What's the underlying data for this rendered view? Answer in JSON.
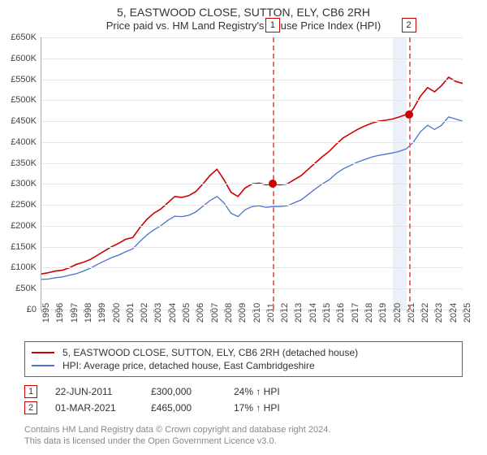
{
  "title_line1": "5, EASTWOOD CLOSE, SUTTON, ELY, CB6 2RH",
  "title_line2": "Price paid vs. HM Land Registry's House Price Index (HPI)",
  "title_fontsize_1": 14,
  "title_fontsize_2": 13,
  "chart": {
    "type": "line",
    "background_color": "#ffffff",
    "grid_color": "#e6e6e6",
    "axis_color": "#aaaaaa",
    "tick_label_fontsize": 11,
    "y": {
      "min": 0,
      "max": 650000,
      "tick_step": 50000,
      "labels": [
        "£0",
        "£50K",
        "£100K",
        "£150K",
        "£200K",
        "£250K",
        "£300K",
        "£350K",
        "£400K",
        "£450K",
        "£500K",
        "£550K",
        "£600K",
        "£650K"
      ]
    },
    "x": {
      "min": 1995,
      "max": 2025,
      "tick_step": 1,
      "labels": [
        "1995",
        "1996",
        "1997",
        "1998",
        "1999",
        "2000",
        "2001",
        "2002",
        "2003",
        "2004",
        "2005",
        "2006",
        "2007",
        "2008",
        "2009",
        "2010",
        "2011",
        "2012",
        "2013",
        "2014",
        "2015",
        "2016",
        "2017",
        "2018",
        "2019",
        "2020",
        "2021",
        "2022",
        "2023",
        "2024",
        "2025"
      ]
    },
    "vband": {
      "start_year": 2020,
      "end_year": 2021,
      "color": "#d8e2f3",
      "opacity": 0.5
    },
    "vlines": [
      {
        "id": 1,
        "year": 2011.47,
        "color": "#e07070",
        "dash": true,
        "box_label": "1"
      },
      {
        "id": 2,
        "year": 2021.16,
        "color": "#e07070",
        "dash": true,
        "box_label": "2"
      }
    ],
    "markers": [
      {
        "year": 2011.47,
        "value": 300000,
        "color": "#cc0000",
        "radius": 5
      },
      {
        "year": 2021.16,
        "value": 465000,
        "color": "#cc0000",
        "radius": 5
      }
    ],
    "series": [
      {
        "name": "property",
        "label": "5, EASTWOOD CLOSE, SUTTON, ELY, CB6 2RH (detached house)",
        "color": "#cc0000",
        "line_width": 1.6,
        "data": [
          [
            1995,
            85000
          ],
          [
            1995.5,
            88000
          ],
          [
            1996,
            92000
          ],
          [
            1996.5,
            94000
          ],
          [
            1997,
            100000
          ],
          [
            1997.5,
            108000
          ],
          [
            1998,
            113000
          ],
          [
            1998.5,
            120000
          ],
          [
            1999,
            130000
          ],
          [
            1999.5,
            140000
          ],
          [
            2000,
            150000
          ],
          [
            2000.5,
            158000
          ],
          [
            2001,
            168000
          ],
          [
            2001.5,
            172000
          ],
          [
            2002,
            195000
          ],
          [
            2002.5,
            215000
          ],
          [
            2003,
            230000
          ],
          [
            2003.5,
            240000
          ],
          [
            2004,
            255000
          ],
          [
            2004.5,
            270000
          ],
          [
            2005,
            268000
          ],
          [
            2005.5,
            272000
          ],
          [
            2006,
            282000
          ],
          [
            2006.5,
            300000
          ],
          [
            2007,
            320000
          ],
          [
            2007.5,
            335000
          ],
          [
            2008,
            310000
          ],
          [
            2008.5,
            280000
          ],
          [
            2009,
            270000
          ],
          [
            2009.5,
            290000
          ],
          [
            2010,
            300000
          ],
          [
            2010.5,
            302000
          ],
          [
            2011,
            298000
          ],
          [
            2011.47,
            300000
          ],
          [
            2012,
            298000
          ],
          [
            2012.5,
            300000
          ],
          [
            2013,
            310000
          ],
          [
            2013.5,
            320000
          ],
          [
            2014,
            335000
          ],
          [
            2014.5,
            350000
          ],
          [
            2015,
            365000
          ],
          [
            2015.5,
            378000
          ],
          [
            2016,
            395000
          ],
          [
            2016.5,
            410000
          ],
          [
            2017,
            420000
          ],
          [
            2017.5,
            430000
          ],
          [
            2018,
            438000
          ],
          [
            2018.5,
            445000
          ],
          [
            2019,
            450000
          ],
          [
            2019.5,
            452000
          ],
          [
            2020,
            455000
          ],
          [
            2020.5,
            460000
          ],
          [
            2021,
            466000
          ],
          [
            2021.16,
            465000
          ],
          [
            2021.5,
            480000
          ],
          [
            2022,
            510000
          ],
          [
            2022.5,
            530000
          ],
          [
            2023,
            520000
          ],
          [
            2023.5,
            535000
          ],
          [
            2024,
            555000
          ],
          [
            2024.5,
            545000
          ],
          [
            2025,
            540000
          ]
        ]
      },
      {
        "name": "hpi",
        "label": "HPI: Average price, detached house, East Cambridgeshire",
        "color": "#4a74c9",
        "line_width": 1.3,
        "data": [
          [
            1995,
            72000
          ],
          [
            1995.5,
            73000
          ],
          [
            1996,
            76000
          ],
          [
            1996.5,
            78000
          ],
          [
            1997,
            82000
          ],
          [
            1997.5,
            86000
          ],
          [
            1998,
            92000
          ],
          [
            1998.5,
            99000
          ],
          [
            1999,
            108000
          ],
          [
            1999.5,
            116000
          ],
          [
            2000,
            124000
          ],
          [
            2000.5,
            130000
          ],
          [
            2001,
            138000
          ],
          [
            2001.5,
            145000
          ],
          [
            2002,
            162000
          ],
          [
            2002.5,
            178000
          ],
          [
            2003,
            190000
          ],
          [
            2003.5,
            200000
          ],
          [
            2004,
            213000
          ],
          [
            2004.5,
            223000
          ],
          [
            2005,
            222000
          ],
          [
            2005.5,
            225000
          ],
          [
            2006,
            233000
          ],
          [
            2006.5,
            247000
          ],
          [
            2007,
            260000
          ],
          [
            2007.5,
            270000
          ],
          [
            2008,
            255000
          ],
          [
            2008.5,
            230000
          ],
          [
            2009,
            222000
          ],
          [
            2009.5,
            238000
          ],
          [
            2010,
            246000
          ],
          [
            2010.5,
            248000
          ],
          [
            2011,
            244000
          ],
          [
            2011.5,
            246000
          ],
          [
            2012,
            246000
          ],
          [
            2012.5,
            248000
          ],
          [
            2013,
            255000
          ],
          [
            2013.5,
            262000
          ],
          [
            2014,
            275000
          ],
          [
            2014.5,
            288000
          ],
          [
            2015,
            300000
          ],
          [
            2015.5,
            310000
          ],
          [
            2016,
            325000
          ],
          [
            2016.5,
            336000
          ],
          [
            2017,
            344000
          ],
          [
            2017.5,
            352000
          ],
          [
            2018,
            358000
          ],
          [
            2018.5,
            364000
          ],
          [
            2019,
            368000
          ],
          [
            2019.5,
            371000
          ],
          [
            2020,
            374000
          ],
          [
            2020.5,
            378000
          ],
          [
            2021,
            384000
          ],
          [
            2021.5,
            400000
          ],
          [
            2022,
            425000
          ],
          [
            2022.5,
            440000
          ],
          [
            2023,
            430000
          ],
          [
            2023.5,
            440000
          ],
          [
            2024,
            460000
          ],
          [
            2024.5,
            455000
          ],
          [
            2025,
            450000
          ]
        ]
      }
    ]
  },
  "legend": {
    "border_color": "#666666",
    "fontsize": 12,
    "items": [
      {
        "color": "#cc0000",
        "label": "5, EASTWOOD CLOSE, SUTTON, ELY, CB6 2RH (detached house)"
      },
      {
        "color": "#4a74c9",
        "label": "HPI: Average price, detached house, East Cambridgeshire"
      }
    ]
  },
  "sales": [
    {
      "marker": "1",
      "date": "22-JUN-2011",
      "price": "£300,000",
      "hpi_diff": "24% ↑ HPI"
    },
    {
      "marker": "2",
      "date": "01-MAR-2021",
      "price": "£465,000",
      "hpi_diff": "17% ↑ HPI"
    }
  ],
  "footnote_line1": "Contains HM Land Registry data © Crown copyright and database right 2024.",
  "footnote_line2": "This data is licensed under the Open Government Licence v3.0.",
  "footnote_color": "#888888",
  "footnote_fontsize": 11
}
